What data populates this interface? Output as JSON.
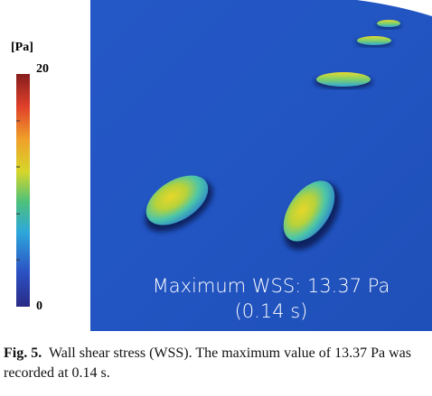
{
  "colorbar": {
    "unit": "[Pa]",
    "max_label": "20",
    "min_label": "0"
  },
  "overlay": {
    "line1": "Maximum WSS: 13.37 Pa",
    "line2": "(0.14 s)"
  },
  "caption": {
    "label": "Fig. 5.",
    "text": "Wall shear stress (WSS). The maximum value of 13.37 Pa was recorded at 0.14 s."
  }
}
